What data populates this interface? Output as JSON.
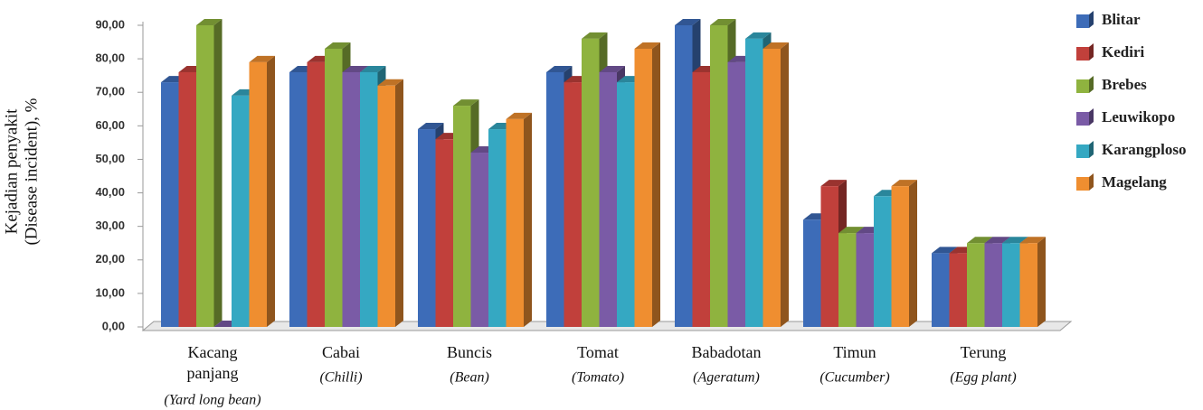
{
  "chart_data": {
    "type": "bar3d",
    "y_label": "Kejadian penyakit",
    "y_label_2": "(Disease incident), %",
    "categories": [
      "Kacang panjang",
      "Cabai",
      "Buncis",
      "Tomat",
      "Babadotan",
      "Timun",
      "Terung"
    ],
    "category_translations": [
      "(Yard long bean)",
      "(Chilli)",
      "(Bean)",
      "(Tomato)",
      "(Ageratum)",
      "(Cucumber)",
      "(Egg plant)"
    ],
    "series": [
      {
        "name": "Blitar",
        "color": "#3d6cb8",
        "values": [
          73,
          76,
          59,
          76,
          90,
          32,
          22
        ]
      },
      {
        "name": "Kediri",
        "color": "#c1403b",
        "values": [
          76,
          79,
          56,
          73,
          76,
          42,
          22
        ]
      },
      {
        "name": "Brebes",
        "color": "#8fb33f",
        "values": [
          90,
          83,
          66,
          86,
          90,
          28,
          25
        ]
      },
      {
        "name": "Leuwikopo",
        "color": "#7a5ba6",
        "values": [
          0,
          76,
          52,
          76,
          79,
          28,
          25
        ]
      },
      {
        "name": "Karangploso",
        "color": "#35a8c2",
        "values": [
          69,
          76,
          59,
          73,
          86,
          39,
          25
        ]
      },
      {
        "name": "Magelang",
        "color": "#ef8e30",
        "values": [
          79,
          72,
          62,
          83,
          83,
          42,
          25
        ]
      }
    ],
    "ylim": [
      0,
      90
    ],
    "yticks": [
      {
        "value": 0,
        "label": "0,00"
      },
      {
        "value": 10,
        "label": "10,00"
      },
      {
        "value": 20,
        "label": "20,00"
      },
      {
        "value": 30,
        "label": "30,00"
      },
      {
        "value": 40,
        "label": "40,00"
      },
      {
        "value": 50,
        "label": "50,00"
      },
      {
        "value": 60,
        "label": "60,00"
      },
      {
        "value": 70,
        "label": "70,00"
      },
      {
        "value": 80,
        "label": "80,00"
      },
      {
        "value": 90,
        "label": "90,00"
      }
    ],
    "legend": "right"
  }
}
